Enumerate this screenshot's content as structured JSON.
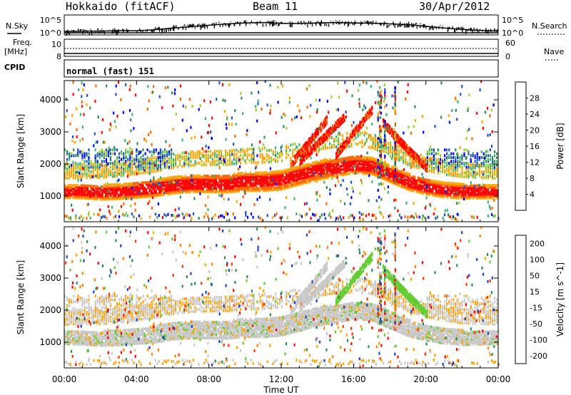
{
  "header": {
    "station": "Hokkaido (fitACF)",
    "beam": "Beam 11",
    "date": "30/Apr/2012"
  },
  "side_labels": {
    "nsky": "N.Sky",
    "freq": "Freq.",
    "freq_unit": "[MHz]",
    "cpid": "CPID",
    "nsearch": "N.Search",
    "nave": "Nave"
  },
  "cpid_text": "normal (fast) 151",
  "noise_ticks": [
    "10^5",
    "10^0"
  ],
  "freq_ticks": [
    "10",
    "8"
  ],
  "nave_ticks": [
    "60",
    "0"
  ],
  "chart_data": [
    {
      "type": "line",
      "name": "noise",
      "x_hours": [
        0,
        1,
        2,
        3,
        4,
        5,
        6,
        7,
        8,
        9,
        10,
        11,
        12,
        13,
        14,
        15,
        16,
        17,
        18,
        19,
        20,
        21,
        22,
        23,
        24
      ],
      "nsky_log": [
        0.4,
        0.5,
        0.5,
        0.6,
        0.6,
        0.9,
        1.4,
        1.8,
        2.2,
        2.6,
        2.9,
        3.0,
        2.8,
        2.7,
        2.9,
        3.0,
        2.9,
        2.8,
        2.6,
        2.4,
        1.9,
        1.4,
        1.0,
        0.7,
        0.5
      ],
      "ylim": [
        0,
        5
      ]
    },
    {
      "type": "line",
      "name": "frequency",
      "x_hours": [
        0,
        24
      ],
      "freq_mhz": [
        9.7,
        9.7
      ],
      "nave": [
        22,
        22
      ],
      "ylim": [
        8,
        10
      ]
    },
    {
      "type": "heatmap",
      "name": "power",
      "xlabel": "Time UT",
      "ylabel": "Slant Range [km]",
      "xlim": [
        0,
        24
      ],
      "ylim": [
        200,
        4600
      ],
      "x_ticks": [
        "00:00",
        "04:00",
        "08:00",
        "12:00",
        "16:00",
        "20:00",
        "00:00"
      ],
      "y_ticks": [
        1000,
        2000,
        3000,
        4000
      ],
      "colorbar_label": "Power [dB]",
      "colorbar_ticks": [
        4,
        8,
        12,
        16,
        20,
        24,
        28
      ],
      "colorbar_range": [
        0,
        32
      ],
      "colors": [
        "#0000ff",
        "#2050c8",
        "#2e8b57",
        "#3cb371",
        "#9acd32",
        "#ffa500",
        "#ff6600",
        "#ff0000"
      ],
      "main_band_center_km": [
        1150,
        1150,
        1120,
        1150,
        1200,
        1250,
        1350,
        1400,
        1400,
        1400,
        1450,
        1450,
        1500,
        1650,
        1800,
        1900,
        2000,
        1950,
        1700,
        1450,
        1300,
        1200,
        1150,
        1150,
        1150
      ]
    },
    {
      "type": "heatmap",
      "name": "velocity",
      "xlabel": "Time UT",
      "ylabel": "Slant Range [km]",
      "xlim": [
        0,
        24
      ],
      "ylim": [
        200,
        4600
      ],
      "x_ticks": [
        "00:00",
        "04:00",
        "08:00",
        "12:00",
        "16:00",
        "20:00",
        "00:00"
      ],
      "y_ticks": [
        1000,
        2000,
        3000,
        4000
      ],
      "colorbar_label": "Velocity [m s^-1]",
      "colorbar_ticks": [
        "200",
        "100",
        "50",
        "15",
        "-15",
        "-50",
        "-100",
        "-200"
      ],
      "colors": [
        "#2040c0",
        "#2e8b57",
        "#66cc33",
        "#c8c8c8",
        "#ffa500",
        "#ff7f00",
        "#ff3300",
        "#ff0000"
      ]
    }
  ]
}
